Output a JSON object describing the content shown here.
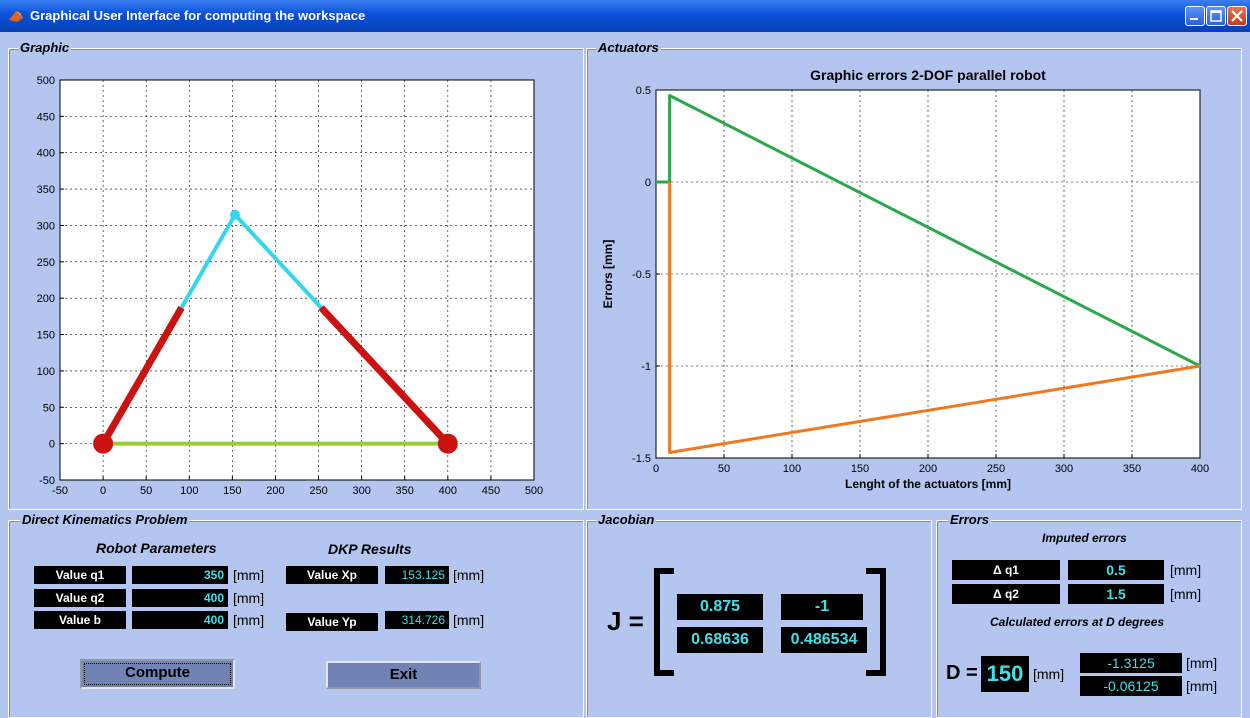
{
  "window": {
    "title": "Graphical User Interface for computing the workspace"
  },
  "panels": {
    "graphic": "Graphic",
    "actuators": "Actuators",
    "dkp": "Direct Kinematics Problem",
    "jacobian": "Jacobian",
    "errors": "Errors"
  },
  "dkp": {
    "robot_params_header": "Robot Parameters",
    "results_header": "DKP Results",
    "q1_label": "Value q1",
    "q1_value": "350",
    "q2_label": "Value q2",
    "q2_value": "400",
    "b_label": "Value b",
    "b_value": "400",
    "xp_label": "Value Xp",
    "xp_value": "153.125",
    "yp_label": "Value Yp",
    "yp_value": "314.726",
    "unit": "[mm]",
    "compute_label": "Compute",
    "exit_label": "Exit"
  },
  "jacobian": {
    "label": "J =",
    "values": [
      "0.875",
      "-1",
      "0.68636",
      "0.486534"
    ]
  },
  "errors": {
    "imputed_header": "Imputed errors",
    "dq1_label": "Δ  q1",
    "dq1_value": "0.5",
    "dq2_label": "Δ  q2",
    "dq2_value": "1.5",
    "calc_header": "Calculated errors at D degrees",
    "d_label": "D =",
    "d_value": "150",
    "e1_value": "-1.3125",
    "e2_value": "-0.06125",
    "unit": "[mm]"
  },
  "colors": {
    "bg": "#b4c5f0",
    "link_red": "#cc1111",
    "link_cyan": "#33d6ee",
    "base_green": "#9acd32",
    "err_green": "#2ca84a",
    "err_orange": "#f07820",
    "value_text": "#40e0e8"
  },
  "chart_data": [
    {
      "type": "line",
      "title": "",
      "xlabel": "",
      "ylabel": "",
      "xlim": [
        -50,
        500
      ],
      "ylim": [
        -50,
        500
      ],
      "xticks": [
        -50,
        0,
        50,
        100,
        150,
        200,
        250,
        300,
        350,
        400,
        450,
        500
      ],
      "yticks": [
        -50,
        0,
        50,
        100,
        150,
        200,
        250,
        300,
        350,
        400,
        450,
        500
      ],
      "grid": true,
      "series": [
        {
          "color": "#9acd32",
          "x": [
            0,
            400
          ],
          "y": [
            0,
            0
          ]
        },
        {
          "color": "#cc1111",
          "x": [
            0,
            91
          ],
          "y": [
            0,
            187
          ]
        },
        {
          "color": "#33d6ee",
          "x": [
            91,
            153.125
          ],
          "y": [
            187,
            314.726
          ]
        },
        {
          "color": "#33d6ee",
          "x": [
            153.125,
            253
          ],
          "y": [
            314.726,
            187
          ]
        },
        {
          "color": "#cc1111",
          "x": [
            253,
            400
          ],
          "y": [
            187,
            0
          ]
        }
      ],
      "points": [
        {
          "x": 0,
          "y": 0,
          "color": "#cc1111"
        },
        {
          "x": 400,
          "y": 0,
          "color": "#cc1111"
        },
        {
          "x": 153.125,
          "y": 314.726,
          "color": "#33d6ee"
        }
      ]
    },
    {
      "type": "line",
      "title": "Graphic errors 2-DOF parallel robot",
      "xlabel": "Lenght of the actuators [mm]",
      "ylabel": "Errors [mm]",
      "xlim": [
        0,
        400
      ],
      "ylim": [
        -1.5,
        0.5
      ],
      "xticks": [
        0,
        50,
        100,
        150,
        200,
        250,
        300,
        350,
        400
      ],
      "yticks": [
        -1.5,
        -1,
        -0.5,
        0,
        0.5
      ],
      "ytick_labels": [
        "-1.5",
        "-1",
        "-0.5",
        "0",
        "0.5"
      ],
      "grid": true,
      "series": [
        {
          "color": "#2ca84a",
          "x": [
            0,
            10,
            10,
            400
          ],
          "y": [
            0,
            0,
            0.47,
            -1
          ]
        },
        {
          "color": "#f07820",
          "x": [
            10,
            10,
            400
          ],
          "y": [
            0,
            -1.47,
            -1
          ]
        }
      ]
    }
  ]
}
